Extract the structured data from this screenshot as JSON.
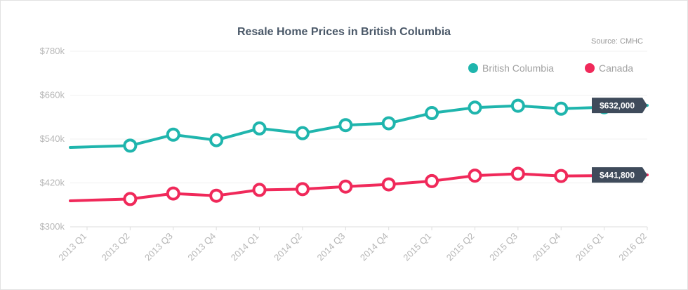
{
  "chart_data": {
    "type": "line",
    "title": "Resale Home Prices in British Columbia",
    "source": "Source: CMHC",
    "x": [
      "2013 Q1",
      "2013 Q2",
      "2013 Q3",
      "2013 Q4",
      "2014 Q1",
      "2014 Q2",
      "2014 Q3",
      "2014 Q4",
      "2015 Q1",
      "2015 Q2",
      "2015 Q3",
      "2015 Q4",
      "2016 Q1",
      "2016 Q2"
    ],
    "ylim": [
      300000,
      780000
    ],
    "yticks": [
      300000,
      420000,
      540000,
      660000,
      780000
    ],
    "ytick_labels": [
      "$300k",
      "$420k",
      "$540k",
      "$660k",
      "$780k"
    ],
    "grid": true,
    "legend_position": "top-right",
    "series": [
      {
        "name": "British Columbia",
        "color": "#1fb5ad",
        "values": [
          517000,
          522000,
          552000,
          537000,
          569000,
          556000,
          578000,
          583000,
          611000,
          626000,
          631000,
          623000,
          627000,
          632000
        ],
        "callout": "$632,000"
      },
      {
        "name": "Canada",
        "color": "#f0295a",
        "values": [
          371000,
          376000,
          391000,
          385000,
          401000,
          403000,
          410000,
          416000,
          425000,
          440000,
          445000,
          439000,
          440000,
          441800
        ],
        "callout": "$441,800"
      }
    ]
  }
}
